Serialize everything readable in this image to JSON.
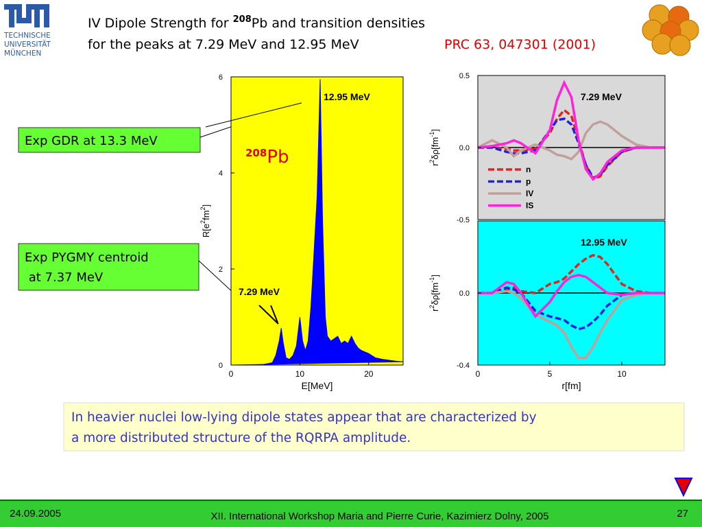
{
  "header": {
    "title_line1": [
      "IV Dipole Strength for ",
      "208",
      "Pb and transition densities"
    ],
    "title_line2": "for the peaks at 7.29 MeV and 12.95 MeV",
    "reference": "PRC 63, 047301 (2001)",
    "logo_lines": [
      "TECHNISCHE",
      "UNIVERSITÄT",
      "MÜNCHEN"
    ]
  },
  "callouts": [
    [
      "Exp GDR at 13.3 MeV"
    ],
    [
      "Exp PYGMY centroid",
      " at 7.37 MeV"
    ]
  ],
  "chart_data": [
    {
      "type": "area",
      "xlabel": "E[MeV]",
      "ylabel": [
        "R[e",
        "2",
        "fm",
        "2",
        "]"
      ],
      "xlim": [
        0,
        25
      ],
      "xticks": [
        0,
        10,
        20
      ],
      "ylim": [
        0,
        6
      ],
      "yticks": [
        0,
        2,
        4,
        6
      ],
      "background": "#ffff00",
      "color": "#0000ff",
      "annotations": [
        "12.95 MeV",
        "7.29 MeV"
      ],
      "label": [
        "208",
        "Pb"
      ],
      "x": [
        0,
        4,
        5,
        6,
        6.5,
        7,
        7.29,
        7.6,
        8,
        8.5,
        9,
        9.5,
        10,
        10.4,
        10.8,
        11.2,
        11.6,
        12,
        12.5,
        12.95,
        13.3,
        13.7,
        14,
        14.5,
        15,
        15.5,
        16,
        16.5,
        17,
        17.5,
        18,
        18.5,
        19,
        20,
        21,
        22,
        23,
        24,
        25
      ],
      "values": [
        0,
        0,
        0.02,
        0.05,
        0.2,
        0.5,
        0.77,
        0.45,
        0.15,
        0.12,
        0.2,
        0.4,
        1.0,
        0.5,
        0.3,
        0.5,
        1.2,
        2.2,
        3.5,
        5.95,
        3.0,
        1.0,
        0.6,
        0.5,
        0.55,
        0.6,
        0.45,
        0.5,
        0.45,
        0.6,
        0.45,
        0.35,
        0.3,
        0.24,
        0.15,
        0.12,
        0.1,
        0.08,
        0.07
      ]
    },
    {
      "type": "line",
      "title": "7.29 MeV",
      "ylabel": [
        "r",
        "2",
        "δρ[fm",
        "-1",
        "]"
      ],
      "xlim": [
        0,
        13
      ],
      "ylim": [
        -0.5,
        0.5
      ],
      "yticks": [
        {
          "value": -0.5,
          "label": "-0.5"
        },
        {
          "value": 0,
          "label": "0.0"
        },
        {
          "value": 0.5,
          "label": "0.5"
        }
      ],
      "background": "#d9d9d9",
      "zero_line": true,
      "legend": "lower left",
      "x": [
        0,
        1,
        2,
        2.5,
        3,
        4,
        5,
        5.5,
        6,
        6.5,
        7,
        7.5,
        8,
        8.5,
        9,
        10,
        11,
        12,
        13
      ],
      "series": [
        {
          "name": "n",
          "color": "#e8221a",
          "dashed": true,
          "values": [
            0,
            0,
            -0.01,
            -0.02,
            -0.02,
            -0.01,
            0.1,
            0.2,
            0.26,
            0.22,
            0.05,
            -0.12,
            -0.22,
            -0.2,
            -0.13,
            -0.03,
            0,
            0,
            0
          ]
        },
        {
          "name": "p",
          "color": "#1a22e8",
          "dashed": true,
          "values": [
            0,
            0,
            -0.03,
            -0.04,
            -0.04,
            -0.02,
            0.12,
            0.19,
            0.2,
            0.16,
            0.03,
            -0.12,
            -0.21,
            -0.19,
            -0.12,
            -0.03,
            0,
            0,
            0
          ]
        },
        {
          "name": "IV",
          "color": "#c0a09a",
          "dashed": false,
          "values": [
            0,
            0.05,
            0.0,
            -0.06,
            -0.02,
            0.02,
            -0.02,
            -0.05,
            -0.06,
            -0.08,
            -0.03,
            0.1,
            0.16,
            0.18,
            0.16,
            0.08,
            0.02,
            0,
            0
          ]
        },
        {
          "name": "IS",
          "color": "#ff22dd",
          "dashed": false,
          "values": [
            0,
            0.01,
            0.03,
            0.05,
            0.03,
            -0.04,
            0.12,
            0.33,
            0.45,
            0.35,
            0.05,
            -0.15,
            -0.22,
            -0.18,
            -0.1,
            -0.02,
            0,
            0,
            0
          ]
        }
      ]
    },
    {
      "type": "line",
      "title": "12.95 MeV",
      "ylabel": [
        "r",
        "2",
        "δρ[fm",
        "-1",
        "]"
      ],
      "xlabel": "r[fm]",
      "xlim": [
        0,
        13
      ],
      "xticks": [
        0,
        5,
        10
      ],
      "ylim": [
        -0.4,
        0.4
      ],
      "yticks": [
        {
          "value": -0.4,
          "label": "-0.4"
        },
        {
          "value": 0,
          "label": "0.0"
        }
      ],
      "background": "#00ffff",
      "zero_line": true,
      "x": [
        0,
        1,
        2,
        2.5,
        3,
        4,
        5,
        5.5,
        6,
        6.5,
        7,
        7.5,
        8,
        8.5,
        9,
        10,
        11,
        12,
        13
      ],
      "series": [
        {
          "color": "#e8221a",
          "dashed": true,
          "values": [
            0,
            0,
            0.02,
            0.03,
            0.01,
            0,
            0.05,
            0.06,
            0.08,
            0.12,
            0.16,
            0.19,
            0.21,
            0.2,
            0.16,
            0.05,
            0.01,
            0,
            0
          ]
        },
        {
          "color": "#1a22e8",
          "dashed": true,
          "values": [
            0,
            0,
            0.03,
            0.02,
            0,
            -0.1,
            -0.13,
            -0.14,
            -0.15,
            -0.18,
            -0.2,
            -0.19,
            -0.16,
            -0.12,
            -0.07,
            -0.01,
            0,
            0,
            0
          ]
        },
        {
          "color": "#c0a09a",
          "dashed": false,
          "values": [
            0,
            0,
            0.01,
            0,
            -0.03,
            -0.12,
            -0.16,
            -0.18,
            -0.22,
            -0.3,
            -0.36,
            -0.36,
            -0.3,
            -0.22,
            -0.15,
            -0.04,
            -0.01,
            0,
            0
          ]
        },
        {
          "color": "#ff22dd",
          "dashed": false,
          "values": [
            0,
            0,
            0.06,
            0.05,
            0,
            -0.13,
            -0.05,
            0.01,
            0.06,
            0.09,
            0.1,
            0.09,
            0.06,
            0.03,
            0.0,
            -0.01,
            0,
            0,
            0
          ]
        }
      ]
    }
  ],
  "note": [
    "In heavier nuclei low-lying dipole states appear that are characterized by",
    "a more distributed structure of the RQRPA amplitude."
  ],
  "footer": {
    "date": "24.09.2005",
    "event": "XII. International Workshop Maria and Pierre Curie, Kazimierz Dolny, 2005",
    "page": "27"
  }
}
